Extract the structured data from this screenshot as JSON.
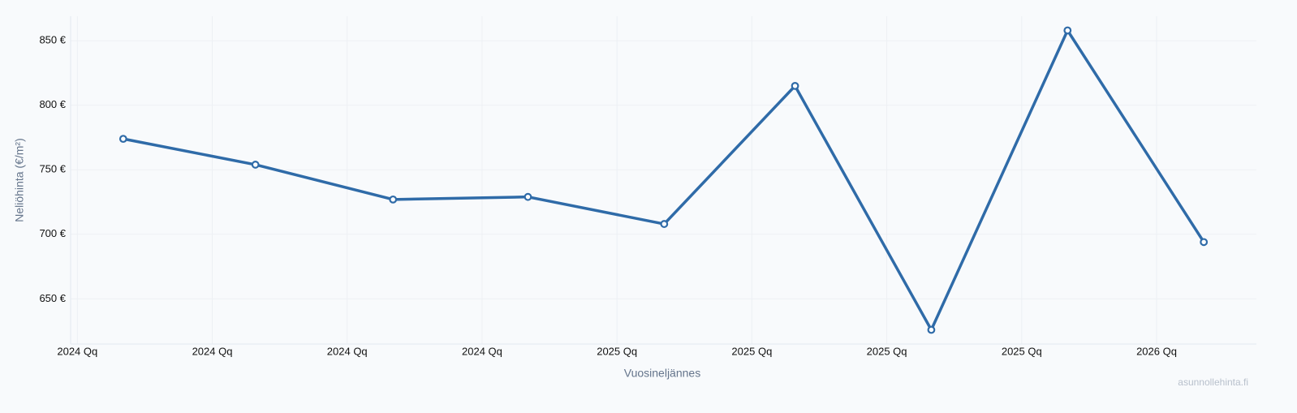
{
  "chart_data": {
    "type": "line",
    "x_label": "Vuosineljännes",
    "y_label": "Neliöhinta (€/m²)",
    "watermark": "asunnollehinta.fi",
    "x": [
      0.34,
      1.32,
      2.34,
      3.34,
      4.35,
      5.32,
      6.33,
      7.34,
      8.35
    ],
    "series": [
      {
        "color": "#2f6ba8",
        "values": [
          774,
          754,
          727,
          729,
          708,
          815,
          626,
          858,
          694
        ]
      }
    ],
    "xlim": [
      -0.05,
      8.74
    ],
    "xticks": [
      {
        "value": 0,
        "label": "2024 Qq"
      },
      {
        "value": 1,
        "label": "2024 Qq"
      },
      {
        "value": 2,
        "label": "2024 Qq"
      },
      {
        "value": 3,
        "label": "2024 Qq"
      },
      {
        "value": 4,
        "label": "2025 Qq"
      },
      {
        "value": 5,
        "label": "2025 Qq"
      },
      {
        "value": 6,
        "label": "2025 Qq"
      },
      {
        "value": 7,
        "label": "2025 Qq"
      },
      {
        "value": 8,
        "label": "2026 Qq"
      }
    ],
    "ylim": [
      615,
      869
    ],
    "yticks": [
      {
        "value": 650,
        "label": "650 €"
      },
      {
        "value": 700,
        "label": "700 €"
      },
      {
        "value": 750,
        "label": "750 €"
      },
      {
        "value": 800,
        "label": "800 €"
      },
      {
        "value": 850,
        "label": "850 €"
      }
    ],
    "grid": true
  }
}
